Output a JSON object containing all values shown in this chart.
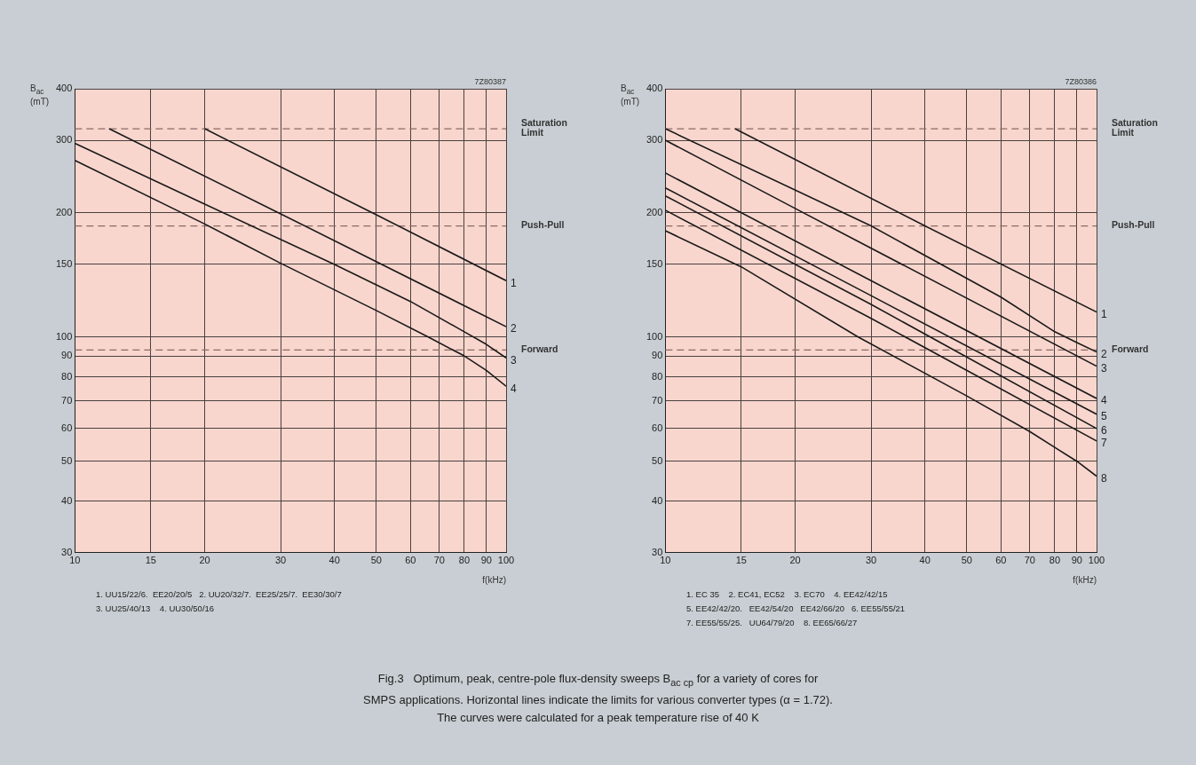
{
  "chart_data": [
    {
      "type": "line",
      "xlabel": "f(kHz)",
      "ylabel": "B$_{ac}$ (mT)",
      "log": "xy",
      "xlim": [
        10,
        100
      ],
      "ylim": [
        30,
        400
      ],
      "xticks": [
        10,
        15,
        20,
        30,
        40,
        50,
        60,
        70,
        80,
        90,
        100
      ],
      "yticks": [
        30,
        40,
        50,
        60,
        70,
        80,
        90,
        100,
        150,
        200,
        300,
        400
      ],
      "grid": true,
      "ref_lines": [
        {
          "axis": "y",
          "value": 320,
          "label": "Saturation Limit",
          "color": "#8c6b66",
          "line_style": "dashed"
        },
        {
          "axis": "y",
          "value": 186,
          "label": "Push-Pull",
          "color": "#8c6b66",
          "line_style": "dashed"
        },
        {
          "axis": "y",
          "value": 93,
          "label": "Forward",
          "color": "#8c6b66",
          "line_style": "dashed"
        }
      ],
      "series": [
        {
          "name": "1",
          "color": "#1a1a1a",
          "x": [
            20,
            50,
            100
          ],
          "values": [
            320,
            198,
            137
          ]
        },
        {
          "name": "2",
          "color": "#1a1a1a",
          "x": [
            12,
            30,
            100
          ],
          "values": [
            320,
            199,
            106
          ]
        },
        {
          "name": "3",
          "color": "#1a1a1a",
          "x": [
            10,
            20,
            40,
            60,
            80,
            90,
            100
          ],
          "values": [
            295,
            210,
            150,
            122,
            103,
            96,
            89
          ]
        },
        {
          "name": "4",
          "color": "#1a1a1a",
          "x": [
            10,
            20,
            30,
            50,
            66,
            80,
            90,
            100
          ],
          "values": [
            268,
            188,
            151,
            116,
            100,
            90,
            83,
            76
          ]
        }
      ],
      "annotations": [
        "7Z80387",
        "1. UU15/22/6.  EE20/20/5   2. UU20/32/7.  EE25/25/7.  EE30/30/7",
        "3. UU25/40/13    4. UU30/50/16"
      ]
    },
    {
      "type": "line",
      "xlabel": "f(kHz)",
      "ylabel": "B$_{ac}$ (mT)",
      "log": "xy",
      "xlim": [
        10,
        100
      ],
      "ylim": [
        30,
        400
      ],
      "xticks": [
        10,
        15,
        20,
        30,
        40,
        50,
        60,
        70,
        80,
        90,
        100
      ],
      "yticks": [
        30,
        40,
        50,
        60,
        70,
        80,
        90,
        100,
        150,
        200,
        300,
        400
      ],
      "grid": true,
      "ref_lines": [
        {
          "axis": "y",
          "value": 320,
          "label": "Saturation Limit",
          "color": "#8c6b66",
          "line_style": "dashed"
        },
        {
          "axis": "y",
          "value": 186,
          "label": "Push-Pull",
          "color": "#8c6b66",
          "line_style": "dashed"
        },
        {
          "axis": "y",
          "value": 93,
          "label": "Forward",
          "color": "#8c6b66",
          "line_style": "dashed"
        }
      ],
      "series": [
        {
          "name": "1",
          "color": "#1a1a1a",
          "x": [
            14.5,
            40,
            100
          ],
          "values": [
            320,
            186,
            115
          ]
        },
        {
          "name": "2",
          "color": "#1a1a1a",
          "x": [
            10,
            30,
            60,
            80,
            90,
            100
          ],
          "values": [
            320,
            186,
            125,
            103,
            97,
            92
          ]
        },
        {
          "name": "3",
          "color": "#1a1a1a",
          "x": [
            10,
            20,
            100
          ],
          "values": [
            300,
            205,
            85
          ]
        },
        {
          "name": "4",
          "color": "#1a1a1a",
          "x": [
            10,
            30,
            100
          ],
          "values": [
            250,
            137,
            71
          ]
        },
        {
          "name": "5",
          "color": "#1a1a1a",
          "x": [
            10,
            30,
            100
          ],
          "values": [
            230,
            126,
            65
          ]
        },
        {
          "name": "6",
          "color": "#1a1a1a",
          "x": [
            10,
            30,
            100
          ],
          "values": [
            220,
            120,
            60
          ]
        },
        {
          "name": "7",
          "color": "#1a1a1a",
          "x": [
            10,
            30,
            100
          ],
          "values": [
            203,
            111,
            56
          ]
        },
        {
          "name": "8",
          "color": "#1a1a1a",
          "x": [
            10,
            15,
            28,
            50,
            70,
            80,
            90,
            100
          ],
          "values": [
            181,
            148,
            100,
            72,
            59,
            54,
            50,
            46
          ]
        }
      ],
      "annotations": [
        "7Z80386",
        "1. EC 35    2. EC41, EC52    3. EC70    4. EE42/42/15",
        "5. EE42/42/20.   EE42/54/20   EE42/66/20   6. EE55/55/21",
        "7. EE55/55/25.   UU64/79/20    8. EE65/66/27"
      ]
    },
    {
      "type": "other",
      "annotations": [
        "Fig.3   Optimum, peak, centre-pole flux-density sweeps B$_{ac cp}$ for a variety of cores for",
        "SMPS applications. Horizontal lines indicate the limits for various converter types (α = 1.72).",
        "The curves were calculated for a peak temperature rise of 40 K"
      ]
    }
  ]
}
